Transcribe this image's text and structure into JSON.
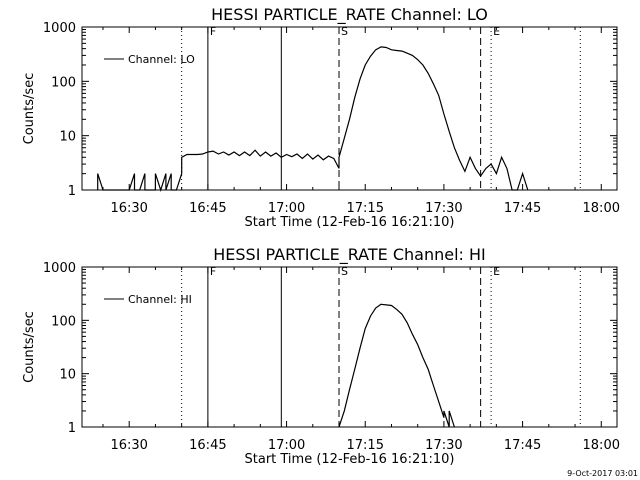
{
  "footer": {
    "timestamp": "9-Oct-2017 03:01"
  },
  "chart_data": [
    {
      "type": "line",
      "title": "HESSI PARTICLE_RATE Channel: LO",
      "xlabel": "Start Time (12-Feb-16 16:21:10)",
      "ylabel": "Counts/sec",
      "yscale": "log",
      "xlim": [
        "16:21",
        "18:03"
      ],
      "ylim": [
        1,
        1000
      ],
      "x_ticks": [
        "16:30",
        "16:45",
        "17:00",
        "17:15",
        "17:30",
        "17:45",
        "18:00"
      ],
      "y_ticks": [
        "1",
        "10",
        "100",
        "1000"
      ],
      "legend": "Channel: LO",
      "legend_position": "top-left",
      "markers": [
        {
          "label": "F",
          "time": "16:45",
          "style": "solid"
        },
        {
          "label": "",
          "time": "16:59",
          "style": "solid"
        },
        {
          "label": "S",
          "time": "17:10",
          "style": "dashed"
        },
        {
          "label": "",
          "time": "17:37",
          "style": "dashed"
        },
        {
          "label": "",
          "time": "16:40",
          "style": "dotted"
        },
        {
          "label": "E",
          "time": "17:39",
          "style": "dotted"
        },
        {
          "label": "",
          "time": "17:56",
          "style": "dotted"
        }
      ],
      "series": [
        {
          "name": "Channel: LO",
          "points": [
            [
              "16:24",
              1
            ],
            [
              "16:24",
              2
            ],
            [
              "16:25",
              1
            ],
            [
              "16:30",
              1
            ],
            [
              "16:31",
              2
            ],
            [
              "16:31",
              1
            ],
            [
              "16:32",
              1
            ],
            [
              "16:33",
              2
            ],
            [
              "16:33",
              1
            ],
            [
              "16:35",
              1
            ],
            [
              "16:35",
              2
            ],
            [
              "16:36",
              1
            ],
            [
              "16:37",
              2
            ],
            [
              "16:37",
              1
            ],
            [
              "16:38",
              2
            ],
            [
              "16:38",
              1
            ],
            [
              "16:39",
              1
            ],
            [
              "16:40",
              2
            ],
            [
              "16:40",
              4
            ],
            [
              "16:41",
              4.5
            ],
            [
              "16:43",
              4.5
            ],
            [
              "16:44",
              4.6
            ],
            [
              "16:45",
              5
            ],
            [
              "16:46",
              5.2
            ],
            [
              "16:47",
              4.6
            ],
            [
              "16:48",
              5
            ],
            [
              "16:49",
              4.4
            ],
            [
              "16:50",
              5
            ],
            [
              "16:51",
              4.3
            ],
            [
              "16:52",
              5
            ],
            [
              "16:53",
              4.3
            ],
            [
              "16:54",
              5.4
            ],
            [
              "16:55",
              4.2
            ],
            [
              "16:56",
              5
            ],
            [
              "16:57",
              4.2
            ],
            [
              "16:58",
              4.8
            ],
            [
              "16:59",
              4
            ],
            [
              "17:00",
              4.5
            ],
            [
              "17:01",
              4.1
            ],
            [
              "17:02",
              4.6
            ],
            [
              "17:03",
              3.8
            ],
            [
              "17:04",
              4.6
            ],
            [
              "17:05",
              3.7
            ],
            [
              "17:06",
              4.4
            ],
            [
              "17:07",
              3.6
            ],
            [
              "17:08",
              4.2
            ],
            [
              "17:09",
              3.8
            ],
            [
              "17:10",
              2.5
            ],
            [
              "17:10",
              4
            ],
            [
              "17:11",
              9
            ],
            [
              "17:12",
              20
            ],
            [
              "17:13",
              50
            ],
            [
              "17:14",
              110
            ],
            [
              "17:15",
              200
            ],
            [
              "17:16",
              290
            ],
            [
              "17:17",
              380
            ],
            [
              "17:18",
              430
            ],
            [
              "17:19",
              420
            ],
            [
              "17:20",
              380
            ],
            [
              "17:21",
              370
            ],
            [
              "17:22",
              360
            ],
            [
              "17:23",
              330
            ],
            [
              "17:24",
              300
            ],
            [
              "17:25",
              250
            ],
            [
              "17:26",
              200
            ],
            [
              "17:27",
              140
            ],
            [
              "17:28",
              90
            ],
            [
              "17:29",
              55
            ],
            [
              "17:30",
              25
            ],
            [
              "17:31",
              12
            ],
            [
              "17:32",
              6
            ],
            [
              "17:33",
              3.5
            ],
            [
              "17:34",
              2.2
            ],
            [
              "17:35",
              4
            ],
            [
              "17:36",
              2.5
            ],
            [
              "17:37",
              1.8
            ],
            [
              "17:38",
              2.5
            ],
            [
              "17:39",
              3
            ],
            [
              "17:40",
              2
            ],
            [
              "17:41",
              4
            ],
            [
              "17:42",
              2.5
            ],
            [
              "17:43",
              1
            ],
            [
              "17:44",
              1
            ],
            [
              "17:45",
              2
            ],
            [
              "17:46",
              1
            ]
          ]
        }
      ]
    },
    {
      "type": "line",
      "title": "HESSI PARTICLE_RATE Channel: HI",
      "xlabel": "Start Time (12-Feb-16 16:21:10)",
      "ylabel": "Counts/sec",
      "yscale": "log",
      "xlim": [
        "16:21",
        "18:03"
      ],
      "ylim": [
        1,
        1000
      ],
      "x_ticks": [
        "16:30",
        "16:45",
        "17:00",
        "17:15",
        "17:30",
        "17:45",
        "18:00"
      ],
      "y_ticks": [
        "1",
        "10",
        "100",
        "1000"
      ],
      "legend": "Channel: HI",
      "legend_position": "top-left",
      "markers": [
        {
          "label": "F",
          "time": "16:45",
          "style": "solid"
        },
        {
          "label": "",
          "time": "16:59",
          "style": "solid"
        },
        {
          "label": "S",
          "time": "17:10",
          "style": "dashed"
        },
        {
          "label": "",
          "time": "17:37",
          "style": "dashed"
        },
        {
          "label": "",
          "time": "16:40",
          "style": "dotted"
        },
        {
          "label": "E",
          "time": "17:39",
          "style": "dotted"
        },
        {
          "label": "",
          "time": "17:56",
          "style": "dotted"
        }
      ],
      "series": [
        {
          "name": "Channel: HI",
          "points": [
            [
              "17:10",
              1
            ],
            [
              "17:11",
              2
            ],
            [
              "17:12",
              5
            ],
            [
              "17:13",
              12
            ],
            [
              "17:14",
              30
            ],
            [
              "17:15",
              70
            ],
            [
              "17:16",
              120
            ],
            [
              "17:17",
              170
            ],
            [
              "17:18",
              200
            ],
            [
              "17:19",
              195
            ],
            [
              "17:20",
              190
            ],
            [
              "17:21",
              160
            ],
            [
              "17:22",
              130
            ],
            [
              "17:23",
              90
            ],
            [
              "17:24",
              55
            ],
            [
              "17:25",
              35
            ],
            [
              "17:26",
              20
            ],
            [
              "17:27",
              12
            ],
            [
              "17:28",
              6
            ],
            [
              "17:29",
              3
            ],
            [
              "17:30",
              1.5
            ],
            [
              "17:30",
              2
            ],
            [
              "17:31",
              1
            ],
            [
              "17:31",
              2
            ],
            [
              "17:32",
              1
            ]
          ]
        }
      ]
    }
  ]
}
